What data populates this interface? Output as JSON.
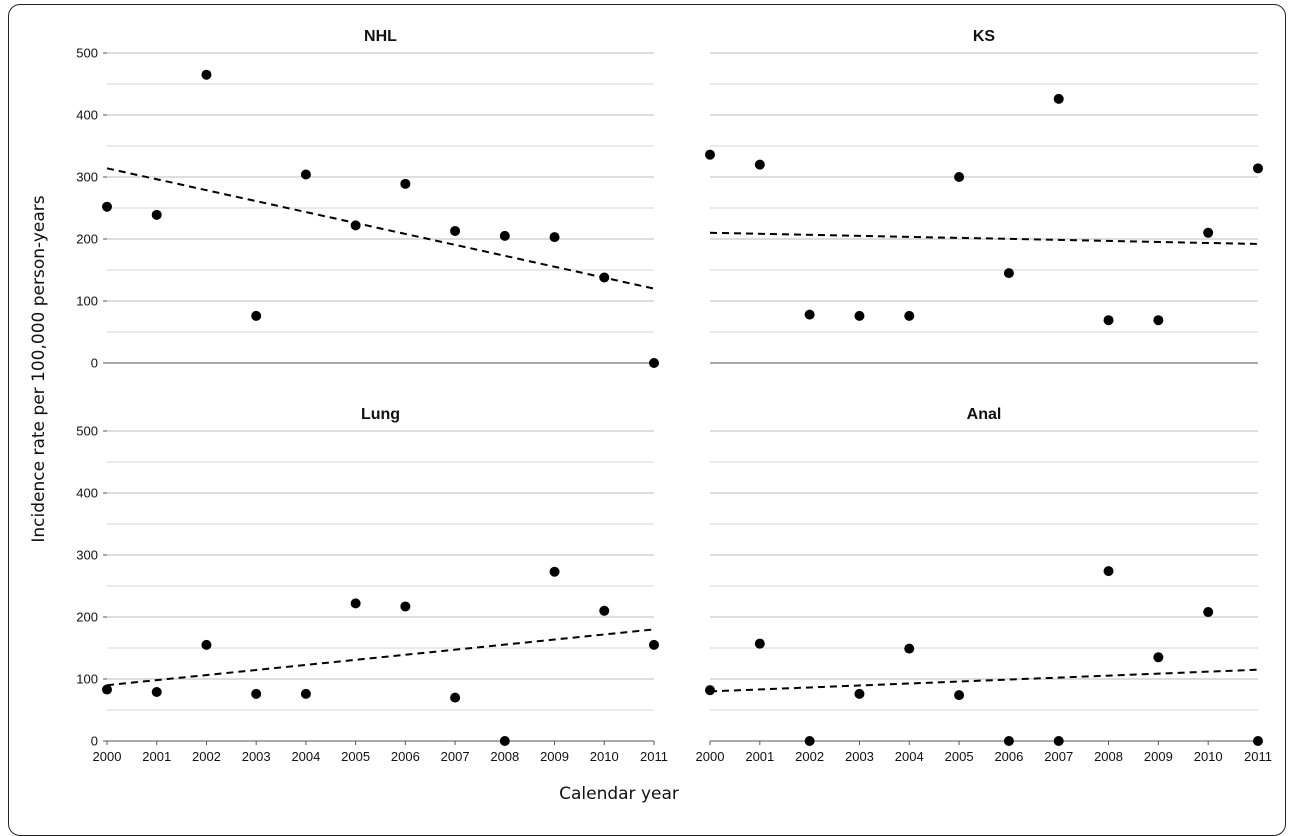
{
  "chart_data": {
    "type": "scatter",
    "xlabel": "Calendar year",
    "ylabel": "Incidence rate per 100,000 person-years",
    "x_ticks": [
      "2000",
      "2001",
      "2002",
      "2003",
      "2004",
      "2005",
      "2006",
      "2007",
      "2008",
      "2009",
      "2010",
      "2011"
    ],
    "y_ticks": [
      "0",
      "100",
      "200",
      "300",
      "400",
      "500"
    ],
    "xlim": [
      2000,
      2011
    ],
    "ylim": [
      0,
      500
    ],
    "grid": true,
    "trend_line_style": "dashed",
    "marker_color": "#000000",
    "panels": [
      {
        "title": "NHL",
        "x": [
          2000,
          2001,
          2002,
          2003,
          2004,
          2005,
          2006,
          2007,
          2008,
          2009,
          2010,
          2011
        ],
        "y": [
          252,
          239,
          465,
          76,
          304,
          222,
          289,
          213,
          205,
          203,
          138,
          0
        ],
        "trend": [
          [
            2000,
            314
          ],
          [
            2011,
            120
          ]
        ]
      },
      {
        "title": "KS",
        "x": [
          2000,
          2001,
          2002,
          2003,
          2004,
          2005,
          2006,
          2007,
          2008,
          2009,
          2010,
          2011
        ],
        "y": [
          336,
          320,
          78,
          76,
          76,
          300,
          145,
          426,
          69,
          69,
          210,
          314
        ],
        "trend": [
          [
            2000,
            210
          ],
          [
            2011,
            192
          ]
        ]
      },
      {
        "title": "Lung",
        "x": [
          2000,
          2001,
          2002,
          2003,
          2004,
          2005,
          2006,
          2007,
          2008,
          2009,
          2010,
          2011
        ],
        "y": [
          83,
          79,
          155,
          76,
          76,
          222,
          217,
          70,
          0,
          273,
          210,
          155
        ],
        "trend": [
          [
            2000,
            90
          ],
          [
            2011,
            180
          ]
        ]
      },
      {
        "title": "Anal",
        "x": [
          2000,
          2001,
          2002,
          2003,
          2004,
          2005,
          2006,
          2007,
          2008,
          2009,
          2010,
          2011
        ],
        "y": [
          82,
          157,
          0,
          76,
          149,
          74,
          0,
          0,
          274,
          135,
          208,
          0
        ],
        "trend": [
          [
            2000,
            80
          ],
          [
            2011,
            115
          ]
        ]
      }
    ]
  }
}
